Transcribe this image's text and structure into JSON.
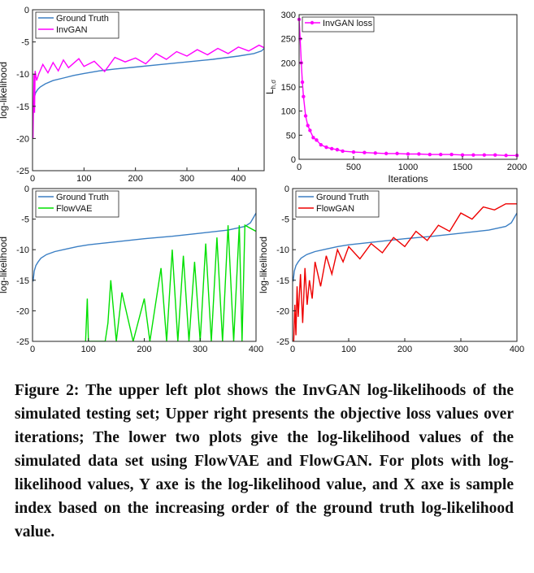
{
  "chart_data": [
    {
      "type": "line",
      "panel": "upper-left",
      "ylabel": "log-likelihood",
      "xlabel": "",
      "xlim": [
        0,
        450
      ],
      "ylim": [
        -25,
        0
      ],
      "xticks": [
        0,
        100,
        200,
        300,
        400
      ],
      "yticks": [
        0,
        -5,
        -10,
        -15,
        -20,
        -25
      ],
      "legend_position": "top-left",
      "series": [
        {
          "name": "Ground Truth",
          "color": "#3b7fc4",
          "x": [
            1,
            3,
            6,
            10,
            15,
            25,
            40,
            60,
            80,
            100,
            130,
            160,
            200,
            250,
            300,
            350,
            400,
            430,
            445,
            450
          ],
          "y": [
            -15.5,
            -13.8,
            -12.9,
            -12.4,
            -12.0,
            -11.5,
            -11.0,
            -10.6,
            -10.2,
            -9.9,
            -9.5,
            -9.2,
            -8.9,
            -8.5,
            -8.1,
            -7.7,
            -7.2,
            -6.8,
            -6.4,
            -6.0
          ]
        },
        {
          "name": "InvGAN",
          "color": "#ff00ff",
          "x": [
            1,
            2,
            3,
            4,
            5,
            8,
            12,
            20,
            30,
            40,
            50,
            60,
            70,
            80,
            90,
            100,
            120,
            140,
            160,
            180,
            200,
            220,
            240,
            260,
            280,
            300,
            320,
            340,
            360,
            380,
            400,
            420,
            440,
            450
          ],
          "y": [
            -20,
            -14,
            -10,
            -16,
            -9.5,
            -11,
            -10,
            -8.5,
            -9.8,
            -8.2,
            -9.5,
            -7.8,
            -9.0,
            -8.3,
            -7.6,
            -8.8,
            -8.0,
            -9.6,
            -7.4,
            -8.1,
            -7.5,
            -8.4,
            -6.8,
            -7.7,
            -6.5,
            -7.2,
            -6.2,
            -7.0,
            -6.0,
            -6.8,
            -5.8,
            -6.4,
            -5.5,
            -5.9
          ]
        }
      ]
    },
    {
      "type": "line",
      "panel": "upper-right",
      "ylabel": "L",
      "ylabel_sub": "h,σ",
      "xlabel": "Iterations",
      "xlim": [
        0,
        2000
      ],
      "ylim": [
        0,
        300
      ],
      "xticks": [
        0,
        500,
        1000,
        1500,
        2000
      ],
      "yticks": [
        0,
        50,
        100,
        150,
        200,
        250,
        300
      ],
      "legend_position": "top-left",
      "series": [
        {
          "name": "InvGAN loss",
          "color": "#ff00ff",
          "x": [
            0,
            10,
            20,
            30,
            40,
            60,
            80,
            100,
            130,
            160,
            200,
            250,
            300,
            350,
            400,
            500,
            600,
            700,
            800,
            900,
            1000,
            1100,
            1200,
            1300,
            1400,
            1500,
            1600,
            1700,
            1800,
            1900,
            2000
          ],
          "y": [
            290,
            250,
            200,
            160,
            130,
            90,
            70,
            60,
            45,
            40,
            30,
            25,
            22,
            20,
            17,
            15,
            14,
            13,
            12,
            12,
            11,
            11,
            10,
            10,
            10,
            9,
            9,
            9,
            9,
            8,
            8
          ]
        }
      ]
    },
    {
      "type": "line",
      "panel": "lower-left",
      "ylabel": "log-likelihood",
      "xlabel": "",
      "xlim": [
        0,
        400
      ],
      "ylim": [
        -25,
        0
      ],
      "xticks": [
        0,
        100,
        200,
        300,
        400
      ],
      "yticks": [
        0,
        -5,
        -10,
        -15,
        -20,
        -25
      ],
      "legend_position": "top-left",
      "series": [
        {
          "name": "Ground Truth",
          "color": "#3b7fc4",
          "x": [
            1,
            3,
            6,
            10,
            15,
            25,
            40,
            60,
            80,
            100,
            130,
            160,
            200,
            250,
            300,
            350,
            380,
            390,
            395,
            400
          ],
          "y": [
            -15.2,
            -13.5,
            -12.6,
            -12.0,
            -11.4,
            -10.8,
            -10.3,
            -9.9,
            -9.5,
            -9.2,
            -8.9,
            -8.6,
            -8.2,
            -7.8,
            -7.3,
            -6.8,
            -6.2,
            -5.6,
            -4.8,
            -4.0
          ]
        },
        {
          "name": "FlowVAE",
          "color": "#00e000",
          "x": [
            95,
            98,
            100,
            130,
            135,
            140,
            150,
            160,
            180,
            200,
            210,
            230,
            240,
            250,
            260,
            270,
            280,
            290,
            300,
            310,
            320,
            330,
            340,
            350,
            360,
            370,
            375,
            380,
            390,
            400
          ],
          "y": [
            -25,
            -18,
            -25,
            -25,
            -22,
            -15,
            -25,
            -17,
            -25,
            -18,
            -25,
            -13,
            -25,
            -10,
            -25,
            -11,
            -25,
            -12,
            -25,
            -9,
            -25,
            -8,
            -25,
            -6,
            -25,
            -6,
            -25,
            -6,
            -6.5,
            -7
          ]
        }
      ]
    },
    {
      "type": "line",
      "panel": "lower-right",
      "ylabel": "log-likelihood",
      "xlabel": "",
      "xlim": [
        0,
        400
      ],
      "ylim": [
        -25,
        0
      ],
      "xticks": [
        0,
        100,
        200,
        300,
        400
      ],
      "yticks": [
        0,
        -5,
        -10,
        -15,
        -20,
        -25
      ],
      "legend_position": "top-left",
      "series": [
        {
          "name": "Ground Truth",
          "color": "#3b7fc4",
          "x": [
            1,
            3,
            6,
            10,
            15,
            25,
            40,
            60,
            80,
            100,
            130,
            160,
            200,
            250,
            300,
            350,
            380,
            390,
            395,
            400
          ],
          "y": [
            -15.2,
            -13.5,
            -12.6,
            -12.0,
            -11.4,
            -10.8,
            -10.3,
            -9.9,
            -9.5,
            -9.2,
            -8.9,
            -8.6,
            -8.2,
            -7.8,
            -7.3,
            -6.8,
            -6.2,
            -5.6,
            -4.8,
            -4.0
          ]
        },
        {
          "name": "FlowGAN",
          "color": "#ee0000",
          "x": [
            2,
            4,
            6,
            8,
            10,
            14,
            18,
            22,
            26,
            30,
            35,
            40,
            50,
            60,
            70,
            80,
            90,
            100,
            120,
            140,
            160,
            180,
            200,
            220,
            240,
            260,
            280,
            300,
            320,
            340,
            360,
            380,
            400
          ],
          "y": [
            -25,
            -19,
            -24,
            -16,
            -21,
            -14,
            -22,
            -13,
            -19,
            -15,
            -18,
            -12,
            -16,
            -11,
            -14,
            -10,
            -12,
            -9.5,
            -11.5,
            -9,
            -10.5,
            -8,
            -9.5,
            -7,
            -8.5,
            -6,
            -7,
            -4,
            -5,
            -3,
            -3.5,
            -2.5,
            -2.5
          ]
        }
      ]
    }
  ],
  "caption": "Figure 2: The upper left plot shows the InvGAN log-likelihoods of the simulated testing set; Upper right presents the objective loss values over iterations; The lower two plots give the log-likelihood values of the simulated data set using FlowVAE and FlowGAN. For plots with log-likelihood values, Y axe is the log-likelihood value, and X axe is sample index based on the increasing order of the ground truth log-likelihood value."
}
